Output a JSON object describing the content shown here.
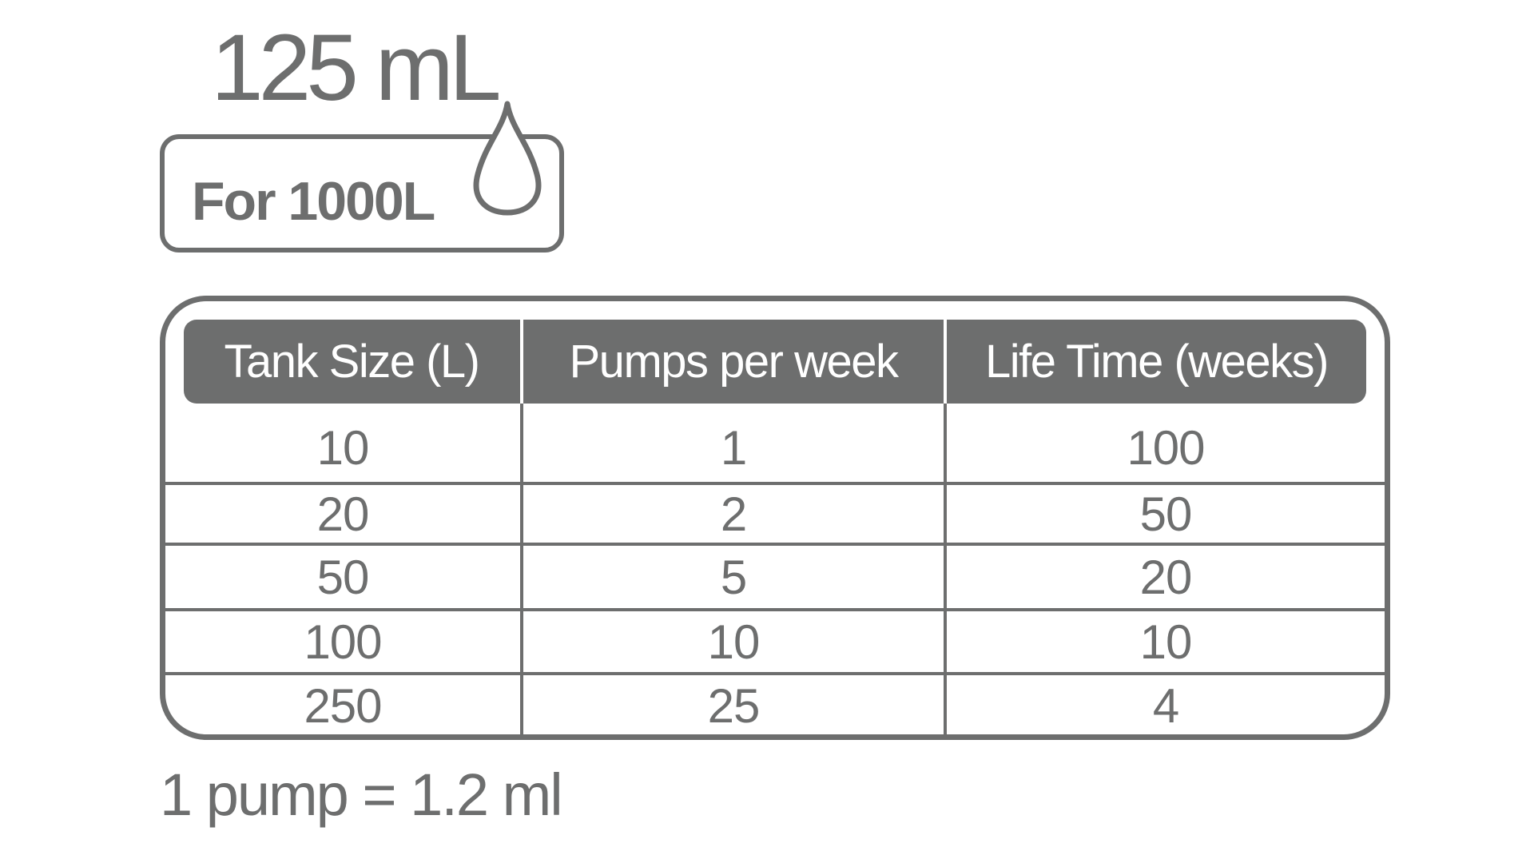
{
  "product": {
    "volume_label": "125 mL",
    "dosage_label": "For 1000L",
    "drop_icon": "water-drop-icon"
  },
  "table": {
    "headers": [
      "Tank Size (L)",
      "Pumps per week",
      "Life Time (weeks)"
    ],
    "rows": [
      [
        "10",
        "1",
        "100"
      ],
      [
        "20",
        "2",
        "50"
      ],
      [
        "50",
        "5",
        "20"
      ],
      [
        "100",
        "10",
        "10"
      ],
      [
        "250",
        "25",
        "4"
      ]
    ]
  },
  "footnote": "1 pump = 1.2 ml",
  "colors": {
    "primary_gray": "#6d6e6e",
    "background": "#ffffff"
  }
}
